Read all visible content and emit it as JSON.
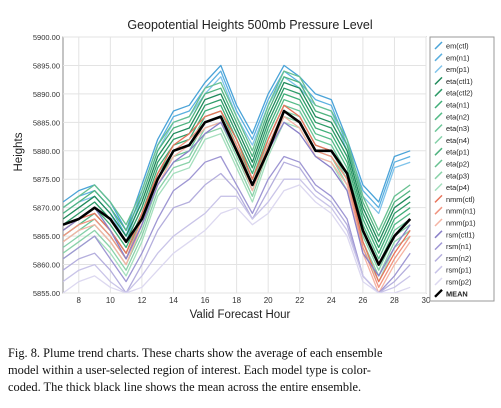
{
  "chart_data": {
    "type": "line",
    "title": "Geopotential Heights 500mb Pressure Level",
    "xlabel": "Valid Forecast Hour",
    "ylabel": "Heights",
    "xlim": [
      7,
      30
    ],
    "ylim": [
      5855,
      5900
    ],
    "x_ticks": [
      8,
      10,
      12,
      14,
      16,
      18,
      20,
      22,
      24,
      26,
      28,
      30
    ],
    "y_ticks": [
      "5900.00",
      "5895.00",
      "5890.00",
      "5885.00",
      "5880.00",
      "5875.00",
      "5870.00",
      "5865.00",
      "5860.00",
      "5855.00"
    ],
    "grid": true,
    "legend_position": "right",
    "x": [
      7,
      8,
      9,
      10,
      11,
      12,
      13,
      14,
      15,
      16,
      17,
      18,
      19,
      20,
      21,
      22,
      23,
      24,
      25,
      26,
      27,
      28,
      29
    ],
    "series": [
      {
        "name": "em(ctl)",
        "color": "#4aa3d8",
        "values": [
          5871,
          5873,
          5874,
          5871,
          5866,
          5874,
          5882,
          5887,
          5888,
          5892,
          5895,
          5888,
          5883,
          5890,
          5895,
          5893,
          5890,
          5889,
          5882,
          5874,
          5871,
          5879,
          5880
        ]
      },
      {
        "name": "em(n1)",
        "color": "#5bb0e0",
        "values": [
          5870,
          5872,
          5873,
          5870,
          5865,
          5873,
          5881,
          5886,
          5887,
          5891,
          5894,
          5887,
          5882,
          5889,
          5894,
          5892,
          5889,
          5888,
          5881,
          5873,
          5870,
          5878,
          5879
        ]
      },
      {
        "name": "em(p1)",
        "color": "#7fc3ea",
        "values": [
          5869,
          5871,
          5872,
          5869,
          5864,
          5872,
          5880,
          5885,
          5886,
          5890,
          5893,
          5886,
          5881,
          5888,
          5893,
          5891,
          5888,
          5887,
          5880,
          5872,
          5869,
          5877,
          5878
        ]
      },
      {
        "name": "eta(ctl1)",
        "color": "#1f8a5b",
        "values": [
          5868,
          5870,
          5872,
          5869,
          5865,
          5871,
          5879,
          5883,
          5884,
          5889,
          5890,
          5884,
          5878,
          5886,
          5892,
          5891,
          5886,
          5885,
          5880,
          5870,
          5864,
          5870,
          5872
        ]
      },
      {
        "name": "eta(ctl2)",
        "color": "#2e9b68",
        "values": [
          5867,
          5869,
          5871,
          5868,
          5864,
          5870,
          5878,
          5882,
          5883,
          5888,
          5889,
          5883,
          5877,
          5885,
          5891,
          5890,
          5885,
          5884,
          5879,
          5869,
          5863,
          5869,
          5871
        ]
      },
      {
        "name": "eta(n1)",
        "color": "#3fae78",
        "values": [
          5866,
          5868,
          5870,
          5867,
          5863,
          5869,
          5877,
          5881,
          5882,
          5887,
          5888,
          5882,
          5876,
          5884,
          5890,
          5889,
          5884,
          5883,
          5878,
          5868,
          5862,
          5868,
          5870
        ]
      },
      {
        "name": "eta(n2)",
        "color": "#55bb88",
        "values": [
          5865,
          5867,
          5869,
          5866,
          5862,
          5868,
          5876,
          5880,
          5881,
          5886,
          5887,
          5881,
          5875,
          5883,
          5889,
          5888,
          5883,
          5882,
          5877,
          5867,
          5861,
          5867,
          5869
        ]
      },
      {
        "name": "eta(n3)",
        "color": "#6cc698",
        "values": [
          5864,
          5866,
          5868,
          5865,
          5861,
          5867,
          5875,
          5879,
          5880,
          5885,
          5886,
          5880,
          5874,
          5882,
          5888,
          5887,
          5882,
          5881,
          5876,
          5866,
          5860,
          5866,
          5868
        ]
      },
      {
        "name": "eta(n4)",
        "color": "#84d0a8",
        "values": [
          5863,
          5865,
          5867,
          5864,
          5860,
          5866,
          5874,
          5878,
          5879,
          5884,
          5885,
          5879,
          5873,
          5881,
          5887,
          5886,
          5881,
          5880,
          5875,
          5865,
          5859,
          5865,
          5867
        ]
      },
      {
        "name": "eta(p1)",
        "color": "#4fb37f",
        "values": [
          5869,
          5871,
          5873,
          5870,
          5866,
          5872,
          5880,
          5884,
          5885,
          5890,
          5891,
          5885,
          5879,
          5887,
          5893,
          5892,
          5887,
          5886,
          5881,
          5871,
          5865,
          5871,
          5873
        ]
      },
      {
        "name": "eta(p2)",
        "color": "#68c191",
        "values": [
          5870,
          5872,
          5874,
          5871,
          5867,
          5873,
          5881,
          5885,
          5886,
          5891,
          5892,
          5886,
          5880,
          5888,
          5894,
          5893,
          5888,
          5887,
          5882,
          5872,
          5866,
          5872,
          5874
        ]
      },
      {
        "name": "eta(p3)",
        "color": "#8ad2a9",
        "values": [
          5862,
          5864,
          5866,
          5863,
          5859,
          5865,
          5873,
          5877,
          5878,
          5883,
          5884,
          5878,
          5872,
          5880,
          5886,
          5885,
          5880,
          5879,
          5874,
          5864,
          5858,
          5864,
          5866
        ]
      },
      {
        "name": "eta(p4)",
        "color": "#a4dfbd",
        "values": [
          5861,
          5863,
          5865,
          5862,
          5858,
          5864,
          5872,
          5876,
          5877,
          5882,
          5883,
          5877,
          5871,
          5879,
          5885,
          5884,
          5879,
          5878,
          5873,
          5863,
          5857,
          5863,
          5865
        ]
      },
      {
        "name": "nmm(ctl)",
        "color": "#e8735a",
        "values": [
          5866,
          5868,
          5869,
          5866,
          5862,
          5869,
          5876,
          5881,
          5883,
          5886,
          5887,
          5882,
          5875,
          5882,
          5888,
          5886,
          5881,
          5880,
          5876,
          5864,
          5857,
          5862,
          5866
        ]
      },
      {
        "name": "nmm(n1)",
        "color": "#f09480",
        "values": [
          5865,
          5867,
          5868,
          5865,
          5861,
          5868,
          5875,
          5880,
          5882,
          5885,
          5886,
          5881,
          5874,
          5881,
          5887,
          5885,
          5880,
          5879,
          5875,
          5863,
          5856,
          5861,
          5865
        ]
      },
      {
        "name": "nmm(p1)",
        "color": "#f5b4a4",
        "values": [
          5864,
          5866,
          5867,
          5864,
          5860,
          5867,
          5874,
          5879,
          5881,
          5884,
          5885,
          5880,
          5873,
          5880,
          5886,
          5884,
          5879,
          5878,
          5874,
          5862,
          5855,
          5860,
          5864
        ]
      },
      {
        "name": "rsm(ctl1)",
        "color": "#8a80c8",
        "values": [
          5866,
          5868,
          5870,
          5866,
          5861,
          5867,
          5874,
          5878,
          5880,
          5883,
          5885,
          5880,
          5874,
          5880,
          5885,
          5883,
          5879,
          5877,
          5873,
          5862,
          5858,
          5863,
          5867
        ]
      },
      {
        "name": "rsm(n1)",
        "color": "#9e96d3",
        "values": [
          5861,
          5863,
          5865,
          5861,
          5857,
          5862,
          5868,
          5873,
          5875,
          5878,
          5879,
          5874,
          5869,
          5875,
          5879,
          5878,
          5874,
          5872,
          5868,
          5858,
          5855,
          5858,
          5862
        ]
      },
      {
        "name": "rsm(n2)",
        "color": "#b4aedd",
        "values": [
          5859,
          5861,
          5862,
          5859,
          5855,
          5860,
          5866,
          5870,
          5871,
          5874,
          5876,
          5873,
          5868,
          5873,
          5878,
          5877,
          5873,
          5871,
          5867,
          5858,
          5855,
          5857,
          5860
        ]
      },
      {
        "name": "rsm(p1)",
        "color": "#c9c4e8",
        "values": [
          5857,
          5859,
          5860,
          5857,
          5855,
          5858,
          5862,
          5865,
          5867,
          5869,
          5872,
          5872,
          5868,
          5871,
          5875,
          5875,
          5872,
          5870,
          5866,
          5858,
          5855,
          5856,
          5858
        ]
      },
      {
        "name": "rsm(p2)",
        "color": "#dcd8f0",
        "values": [
          5855,
          5857,
          5858,
          5856,
          5855,
          5856,
          5859,
          5862,
          5864,
          5866,
          5869,
          5870,
          5867,
          5869,
          5873,
          5874,
          5871,
          5869,
          5865,
          5857,
          5855,
          5855,
          5856
        ]
      },
      {
        "name": "MEAN",
        "color": "#000000",
        "values": [
          5867,
          5868,
          5870,
          5868,
          5864,
          5868,
          5875,
          5880,
          5881,
          5885,
          5886,
          5880,
          5874,
          5880,
          5887,
          5885,
          5880,
          5880,
          5876,
          5866,
          5860,
          5865,
          5868
        ]
      }
    ]
  },
  "caption": {
    "line1": "Fig. 8.   Plume trend charts. These charts show the average of each ensemble",
    "line2": "model within a user-selected region of interest. Each model type is color-",
    "line3": "coded. The thick black line shows the mean across the entire ensemble."
  }
}
